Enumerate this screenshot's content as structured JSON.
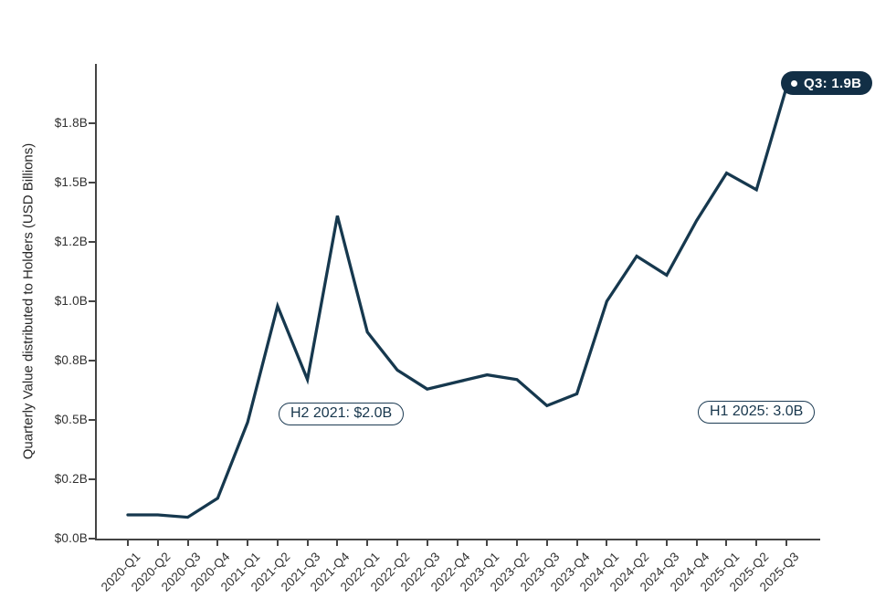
{
  "chart_data": {
    "type": "line",
    "title": "",
    "xlabel": "",
    "ylabel": "Quarterly Value distributed to Holders (USD Billions)",
    "categories": [
      "2020-Q1",
      "2020-Q2",
      "2020-Q3",
      "2020-Q4",
      "2021-Q1",
      "2021-Q2",
      "2021-Q3",
      "2021-Q4",
      "2022-Q1",
      "2022-Q2",
      "2022-Q3",
      "2022-Q4",
      "2023-Q1",
      "2023-Q2",
      "2023-Q3",
      "2023-Q4",
      "2024-Q1",
      "2024-Q2",
      "2024-Q3",
      "2024-Q4",
      "2025-Q1",
      "2025-Q2",
      "2025-Q3"
    ],
    "series": [
      {
        "name": "Quarterly value distributed to holders (USD billions)",
        "values": [
          0.1,
          0.1,
          0.09,
          0.17,
          0.49,
          0.98,
          0.67,
          1.36,
          0.87,
          0.71,
          0.63,
          0.66,
          0.69,
          0.67,
          0.56,
          0.61,
          1.0,
          1.19,
          1.11,
          1.34,
          1.54,
          1.47,
          1.9
        ]
      }
    ],
    "y_ticks": {
      "values": [
        0,
        0.25,
        0.5,
        0.75,
        1.0,
        1.25,
        1.5,
        1.75
      ],
      "labels": [
        "$0.0B",
        "$0.2B",
        "$0.5B",
        "$0.8B",
        "$1.0B",
        "$1.2B",
        "$1.5B",
        "$1.8B"
      ]
    },
    "ylim": [
      0,
      2.0
    ],
    "grid": false,
    "legend": "none",
    "annotations": [
      {
        "text": "H2 2021: $2.0B"
      },
      {
        "text": "H1 2025: 3.0B"
      }
    ],
    "end_label": {
      "text": "Q3: 1.9B",
      "marker": "dot"
    },
    "colors": {
      "line": "#16384e",
      "badge_bg": "#122f46",
      "badge_text": "#ffffff",
      "annotation": "#17364c",
      "axis": "#444444",
      "tick_label": "#303030"
    }
  }
}
